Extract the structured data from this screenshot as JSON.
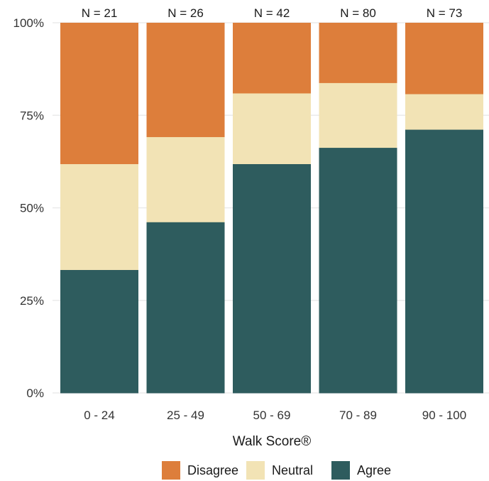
{
  "chart_data": {
    "type": "bar",
    "stacked": true,
    "percent": true,
    "categories": [
      "0 - 24",
      "25 - 49",
      "50 - 69",
      "70 - 89",
      "90 - 100"
    ],
    "n_labels": [
      "N = 21",
      "N = 26",
      "N = 42",
      "N = 80",
      "N = 73"
    ],
    "series": [
      {
        "name": "Agree",
        "color": "#2e5c5e",
        "values": [
          33.3,
          46.2,
          61.9,
          66.3,
          71.2
        ]
      },
      {
        "name": "Neutral",
        "color": "#f2e3b5",
        "values": [
          28.6,
          23.0,
          19.1,
          17.5,
          9.6
        ]
      },
      {
        "name": "Disagree",
        "color": "#dd7e3b",
        "values": [
          38.1,
          30.8,
          19.0,
          16.2,
          19.2
        ]
      }
    ],
    "legend_order": [
      "Disagree",
      "Neutral",
      "Agree"
    ],
    "xlabel": "Walk Score®",
    "ylabel": "",
    "ylim": [
      0,
      100
    ],
    "yticks": [
      0,
      25,
      50,
      75,
      100
    ],
    "ytick_labels": [
      "0%",
      "25%",
      "50%",
      "75%",
      "100%"
    ],
    "grid": true,
    "legend_position": "bottom"
  }
}
